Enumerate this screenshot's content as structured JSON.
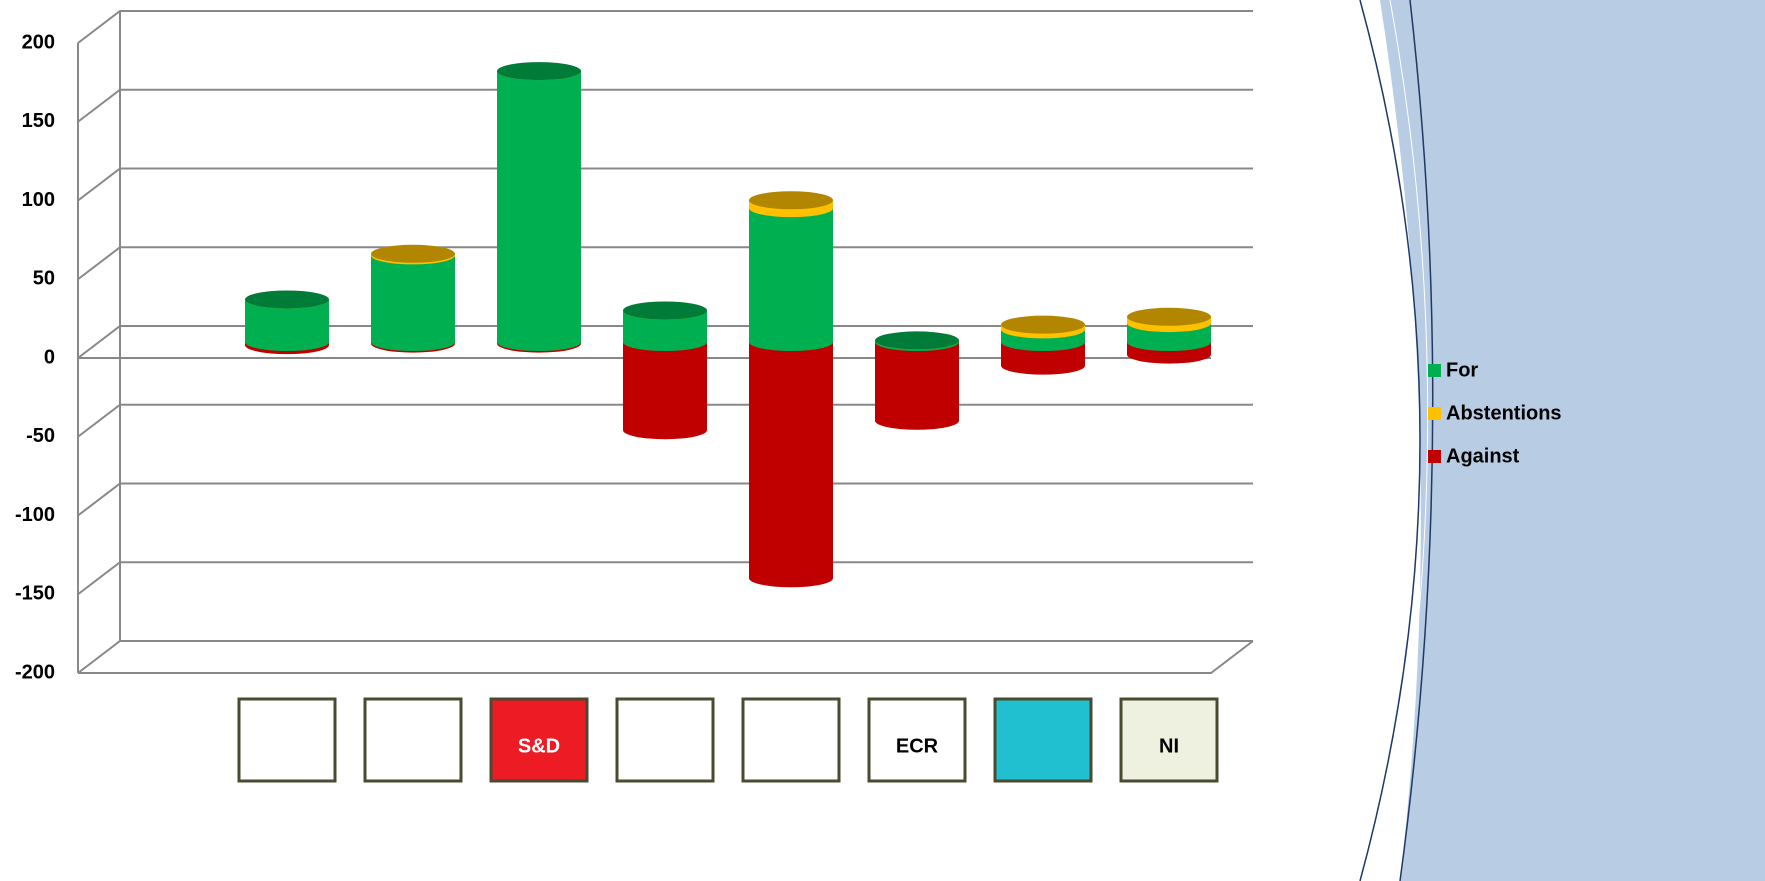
{
  "chart_data": {
    "type": "bar3d",
    "categories": [
      null,
      null,
      "S&D",
      null,
      null,
      "ECR",
      null,
      "NI"
    ],
    "series": [
      {
        "name": "For",
        "color": "#00b050",
        "values": [
          27,
          55,
          172,
          20,
          85,
          1,
          8,
          12
        ]
      },
      {
        "name": "Abstentions",
        "color": "#ffc000",
        "values": [
          0,
          1,
          0,
          0,
          5,
          0,
          3,
          4
        ]
      },
      {
        "name": "Against",
        "color": "#c00000",
        "values": [
          -2,
          -1,
          -1,
          -56,
          -150,
          -50,
          -15,
          -8
        ]
      }
    ],
    "ylim": [
      -200,
      200
    ],
    "yticks": [
      -200,
      -150,
      -100,
      -50,
      0,
      50,
      100,
      150,
      200
    ],
    "grid": true,
    "legend": "right"
  }
}
